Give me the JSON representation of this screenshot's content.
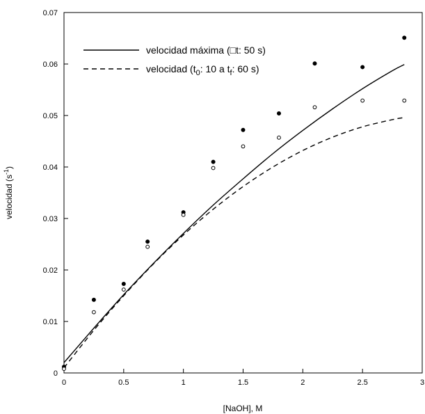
{
  "chart_data": {
    "type": "line",
    "xlabel": "[NaOH], M",
    "ylabel": "velocidad (s",
    "ylabel_sup": "-1",
    "ylabel_end": ")",
    "xlim": [
      0,
      3
    ],
    "ylim": [
      0,
      0.07
    ],
    "x_ticks": [
      0,
      0.5,
      1,
      1.5,
      2,
      2.5,
      3
    ],
    "x_tick_labels": [
      "0",
      "0.5",
      "1",
      "1.5",
      "2",
      "2.5",
      "3"
    ],
    "y_ticks": [
      0,
      0.01,
      0.02,
      0.03,
      0.04,
      0.05,
      0.06,
      0.07
    ],
    "y_tick_labels": [
      "0",
      "0.01",
      "0.02",
      "0.03",
      "0.04",
      "0.05",
      "0.06",
      "0.07"
    ],
    "grid": false,
    "legend_position": "top-left",
    "legend": [
      {
        "style": "solid",
        "parts": [
          {
            "text": "velocidad máxima (",
            "sub": false
          },
          {
            "text": "□",
            "sub": false
          },
          {
            "text": "t: 50 s)",
            "sub": false
          }
        ]
      },
      {
        "style": "dashed",
        "parts": [
          {
            "text": "velocidad (t",
            "sub": false
          },
          {
            "text": "0",
            "sub": true
          },
          {
            "text": ": 10 a t",
            "sub": false
          },
          {
            "text": "f",
            "sub": true
          },
          {
            "text": ": 60 s)",
            "sub": false
          }
        ]
      }
    ],
    "series": [
      {
        "style": "solid",
        "marker": "filled-circle",
        "points": [
          [
            0,
            0.0012
          ],
          [
            0.25,
            0.0142
          ],
          [
            0.5,
            0.0173
          ],
          [
            0.7,
            0.0255
          ],
          [
            1.0,
            0.0312
          ],
          [
            1.25,
            0.041
          ],
          [
            1.5,
            0.0472
          ],
          [
            1.8,
            0.0504
          ],
          [
            2.1,
            0.0601
          ],
          [
            2.5,
            0.0594
          ],
          [
            2.85,
            0.0651
          ]
        ],
        "fit": [
          [
            0,
            0.002
          ],
          [
            0.25,
            0.0087
          ],
          [
            0.5,
            0.0152
          ],
          [
            0.75,
            0.0213
          ],
          [
            1.0,
            0.0271
          ],
          [
            1.25,
            0.0326
          ],
          [
            1.5,
            0.0377
          ],
          [
            1.75,
            0.0426
          ],
          [
            2.0,
            0.0471
          ],
          [
            2.25,
            0.0513
          ],
          [
            2.5,
            0.0552
          ],
          [
            2.75,
            0.0587
          ],
          [
            2.85,
            0.0599
          ]
        ]
      },
      {
        "style": "dashed",
        "marker": "open-circle",
        "points": [
          [
            0,
            0.0008
          ],
          [
            0.25,
            0.0118
          ],
          [
            0.5,
            0.0162
          ],
          [
            0.7,
            0.0245
          ],
          [
            1.0,
            0.0307
          ],
          [
            1.25,
            0.0398
          ],
          [
            1.5,
            0.044
          ],
          [
            1.8,
            0.0457
          ],
          [
            2.1,
            0.0516
          ],
          [
            2.5,
            0.0529
          ],
          [
            2.85,
            0.0529
          ]
        ],
        "fit": [
          [
            0,
            0.001
          ],
          [
            0.25,
            0.0083
          ],
          [
            0.5,
            0.015
          ],
          [
            0.75,
            0.0212
          ],
          [
            1.0,
            0.0268
          ],
          [
            1.25,
            0.0318
          ],
          [
            1.5,
            0.0362
          ],
          [
            1.75,
            0.04
          ],
          [
            2.0,
            0.0432
          ],
          [
            2.25,
            0.0458
          ],
          [
            2.5,
            0.0478
          ],
          [
            2.75,
            0.0492
          ],
          [
            2.85,
            0.0496
          ]
        ]
      }
    ]
  }
}
